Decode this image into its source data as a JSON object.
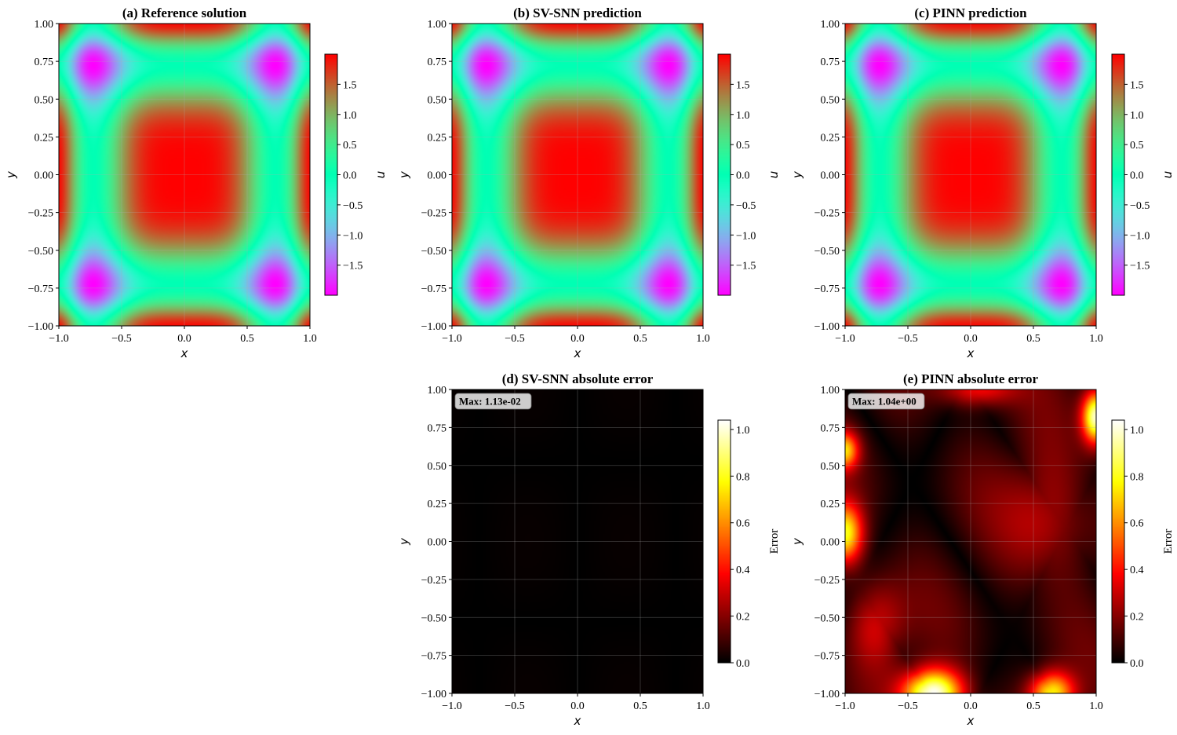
{
  "chart_data": [
    {
      "type": "heatmap",
      "id": "a",
      "title": "(a) Reference solution",
      "xlabel": "x",
      "ylabel": "y",
      "xlim": [
        -1,
        1
      ],
      "ylim": [
        -1,
        1
      ],
      "xticks": [
        "−1.0",
        "−0.5",
        "0.0",
        "0.5",
        "1.0"
      ],
      "yticks": [
        "1.00",
        "0.75",
        "0.50",
        "0.25",
        "0.00",
        "−0.25",
        "−0.50",
        "−0.75",
        "−1.00"
      ],
      "colormap": "rainbow",
      "colorbar": {
        "label": "u",
        "range": [
          -2,
          2
        ],
        "ticks": [
          "1.5",
          "1.0",
          "0.5",
          "0.0",
          "−0.5",
          "−1.0",
          "−1.5"
        ]
      },
      "grid": true
    },
    {
      "type": "heatmap",
      "id": "b",
      "title": "(b) SV-SNN prediction",
      "xlabel": "x",
      "ylabel": "y",
      "xlim": [
        -1,
        1
      ],
      "ylim": [
        -1,
        1
      ],
      "xticks": [
        "−1.0",
        "−0.5",
        "0.0",
        "0.5",
        "1.0"
      ],
      "yticks": [
        "1.00",
        "0.75",
        "0.50",
        "0.25",
        "0.00",
        "−0.25",
        "−0.50",
        "−0.75",
        "−1.00"
      ],
      "colormap": "rainbow",
      "colorbar": {
        "label": "u",
        "range": [
          -2,
          2
        ],
        "ticks": [
          "1.5",
          "1.0",
          "0.5",
          "0.0",
          "−0.5",
          "−1.0",
          "−1.5"
        ]
      },
      "grid": true
    },
    {
      "type": "heatmap",
      "id": "c",
      "title": "(c) PINN prediction",
      "xlabel": "x",
      "ylabel": "y",
      "xlim": [
        -1,
        1
      ],
      "ylim": [
        -1,
        1
      ],
      "xticks": [
        "−1.0",
        "−0.5",
        "0.0",
        "0.5",
        "1.0"
      ],
      "yticks": [
        "1.00",
        "0.75",
        "0.50",
        "0.25",
        "0.00",
        "−0.25",
        "−0.50",
        "−0.75",
        "−1.00"
      ],
      "colormap": "rainbow",
      "colorbar": {
        "label": "u",
        "range": [
          -2,
          2
        ],
        "ticks": [
          "1.5",
          "1.0",
          "0.5",
          "0.0",
          "−0.5",
          "−1.0",
          "−1.5"
        ]
      },
      "grid": true
    },
    {
      "type": "heatmap",
      "id": "d",
      "title": "(d) SV-SNN absolute error",
      "xlabel": "x",
      "ylabel": "y",
      "xlim": [
        -1,
        1
      ],
      "ylim": [
        -1,
        1
      ],
      "xticks": [
        "−1.0",
        "−0.5",
        "0.0",
        "0.5",
        "1.0"
      ],
      "yticks": [
        "1.00",
        "0.75",
        "0.50",
        "0.25",
        "0.00",
        "−0.25",
        "−0.50",
        "−0.75",
        "−1.00"
      ],
      "colormap": "hot",
      "annotation": "Max: 1.13e-02",
      "max_error": 0.0113,
      "colorbar": {
        "label": "Error",
        "range": [
          0,
          1.04
        ],
        "ticks": [
          "1.0",
          "0.8",
          "0.6",
          "0.4",
          "0.2",
          "0.0"
        ]
      },
      "grid": true
    },
    {
      "type": "heatmap",
      "id": "e",
      "title": "(e) PINN absolute error",
      "xlabel": "x",
      "ylabel": "y",
      "xlim": [
        -1,
        1
      ],
      "ylim": [
        -1,
        1
      ],
      "xticks": [
        "−1.0",
        "−0.5",
        "0.0",
        "0.5",
        "1.0"
      ],
      "yticks": [
        "1.00",
        "0.75",
        "0.50",
        "0.25",
        "0.00",
        "−0.25",
        "−0.50",
        "−0.75",
        "−1.00"
      ],
      "colormap": "hot",
      "annotation": "Max: 1.04e+00",
      "max_error": 1.04,
      "colorbar": {
        "label": "Error",
        "range": [
          0,
          1.04
        ],
        "ticks": [
          "1.0",
          "0.8",
          "0.6",
          "0.4",
          "0.2",
          "0.0"
        ]
      },
      "grid": true
    }
  ]
}
